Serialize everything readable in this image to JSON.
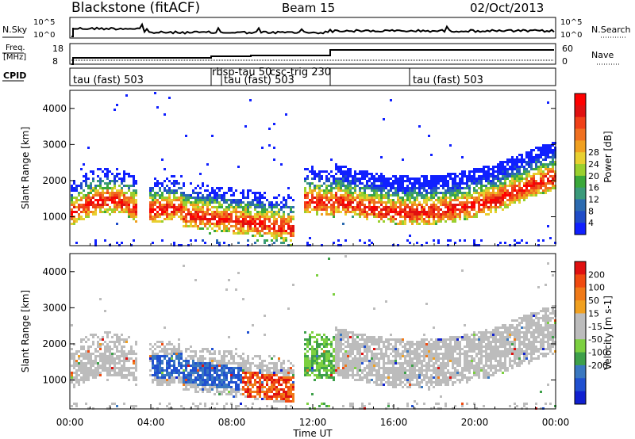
{
  "header": {
    "station": "Blackstone (fitACF)",
    "beam": "Beam 15",
    "date": "02/Oct/2013"
  },
  "top_panel": {
    "left_label": "N.Sky",
    "right_label": "N.Search",
    "left_ticks": [
      "10^5",
      "10^0"
    ],
    "right_ticks": [
      "10^5",
      "10^0"
    ]
  },
  "freq_panel": {
    "left_label_1": "Freq.",
    "left_label_2": "[MHz]",
    "right_label": "Nave",
    "left_ticks": [
      "18",
      "8"
    ],
    "right_ticks": [
      "60",
      "0"
    ]
  },
  "cpid": {
    "label": "CPID",
    "modes": [
      "tau (fast) 503",
      "rbsp-tau 50",
      "tau (fast) 503",
      "csc-trig 230",
      "tau (fast) 503"
    ]
  },
  "chart_data": [
    {
      "type": "heatmap",
      "name": "power",
      "ylabel": "Slant Range [km]",
      "y_ticks": [
        "1000",
        "2000",
        "3000",
        "4000"
      ],
      "ylim": [
        200,
        4500
      ],
      "colorbar": {
        "label": "Power [dB]",
        "ticks": [
          "4",
          "8",
          "12",
          "16",
          "20",
          "24",
          "28"
        ],
        "colors": [
          "#1020ff",
          "#1f4cc8",
          "#2c6bb0",
          "#3a9a7a",
          "#3aa83a",
          "#9ad02e",
          "#e8d030",
          "#f0a020",
          "#f07020",
          "#f04018",
          "#e01010",
          "#ff0000"
        ]
      }
    },
    {
      "type": "heatmap",
      "name": "velocity",
      "xlabel": "Time UT",
      "ylabel": "Slant Range [km]",
      "y_ticks": [
        "1000",
        "2000",
        "3000",
        "4000"
      ],
      "ylim": [
        200,
        4500
      ],
      "x_ticks": [
        "00:00",
        "04:00",
        "08:00",
        "12:00",
        "16:00",
        "20:00",
        "00:00"
      ],
      "colorbar": {
        "label": "Velocity [m s-1]",
        "ticks": [
          "200",
          "100",
          "50",
          "15",
          "-15",
          "-50",
          "-100",
          "-200"
        ],
        "colors": [
          "#1020d0",
          "#2050d0",
          "#3a78c0",
          "#3ea04a",
          "#7cd040",
          "#bcbcbc",
          "#bcbcbc",
          "#f0a020",
          "#f07a18",
          "#f04a10",
          "#e01010"
        ]
      }
    }
  ]
}
